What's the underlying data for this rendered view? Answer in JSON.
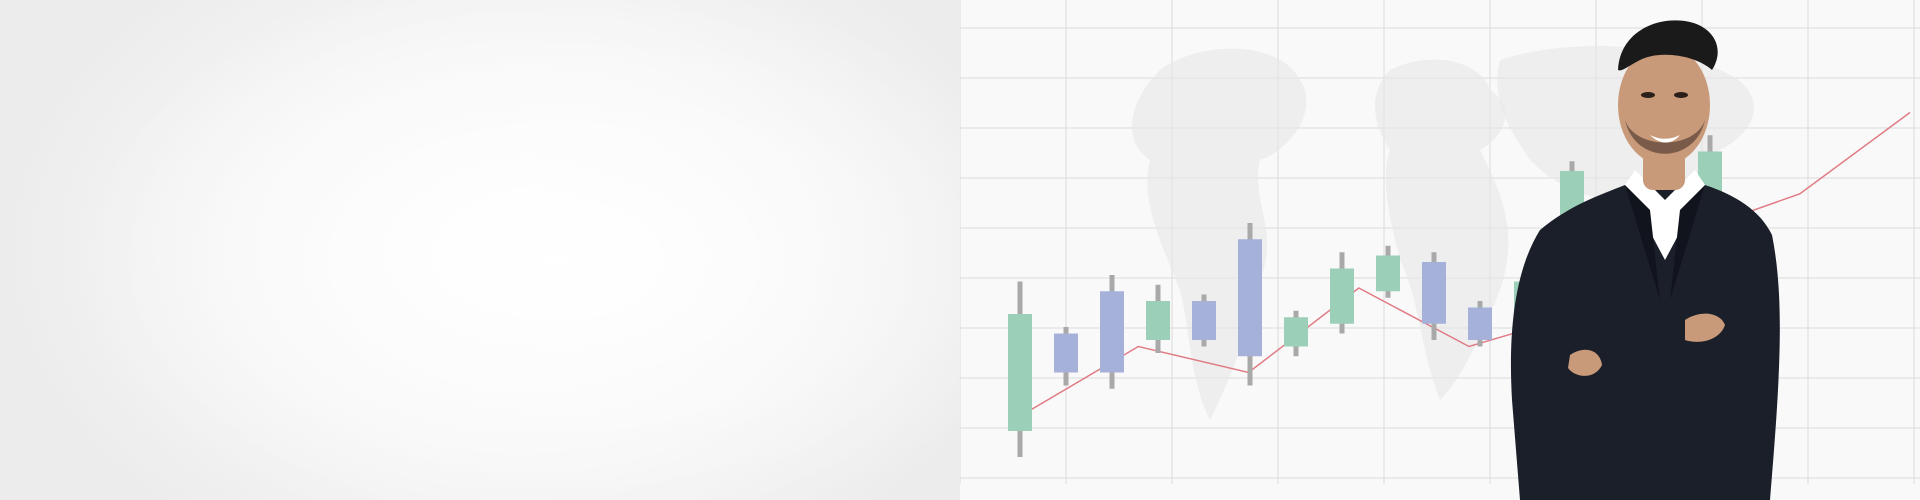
{
  "banner": {
    "background_color": "#f5f5f5",
    "chart_area_color": "#f9f9f9"
  },
  "colors": {
    "grid": "#dcdcdc",
    "map": "#e6e6e6",
    "trend_line": "#e07b84",
    "bull_candle": "#9ccfb8",
    "bear_candle": "#a6b1d9",
    "wick": "#a9a9a9",
    "suit": "#1b1f2a",
    "shirt": "#ffffff",
    "skin": "#c89a7a",
    "hair": "#1a1a1a"
  },
  "chart_data": {
    "type": "candlestick",
    "candles": [
      {
        "dir": "bull",
        "open": 48,
        "close": 12,
        "high": 58,
        "low": 4
      },
      {
        "dir": "bear",
        "open": 42,
        "close": 30,
        "high": 44,
        "low": 26
      },
      {
        "dir": "bear",
        "open": 55,
        "close": 30,
        "high": 60,
        "low": 25
      },
      {
        "dir": "bull",
        "open": 52,
        "close": 40,
        "high": 57,
        "low": 36
      },
      {
        "dir": "bear",
        "open": 52,
        "close": 40,
        "high": 54,
        "low": 38
      },
      {
        "dir": "bear",
        "open": 71,
        "close": 35,
        "high": 76,
        "low": 26
      },
      {
        "dir": "bull",
        "open": 47,
        "close": 38,
        "high": 49,
        "low": 35
      },
      {
        "dir": "bull",
        "open": 62,
        "close": 45,
        "high": 67,
        "low": 42
      },
      {
        "dir": "bull",
        "open": 66,
        "close": 55,
        "high": 69,
        "low": 53
      },
      {
        "dir": "bear",
        "open": 64,
        "close": 45,
        "high": 67,
        "low": 40
      },
      {
        "dir": "bear",
        "open": 50,
        "close": 40,
        "high": 52,
        "low": 38
      },
      {
        "dir": "bull",
        "open": 58,
        "close": 47,
        "high": 61,
        "low": 45
      },
      {
        "dir": "bull",
        "open": 92,
        "close": 74,
        "high": 95,
        "low": 70
      },
      {
        "dir": "bull",
        "open": 82,
        "close": 72,
        "high": 84,
        "low": 70
      },
      {
        "dir": "bull",
        "open": 88,
        "close": 78,
        "high": 90,
        "low": 76
      },
      {
        "dir": "bull",
        "open": 98,
        "close": 83,
        "high": 103,
        "low": 80
      }
    ],
    "trend": [
      18,
      38,
      30,
      56,
      38,
      48,
      73,
      85,
      110
    ],
    "ylim": [
      0,
      120
    ]
  }
}
